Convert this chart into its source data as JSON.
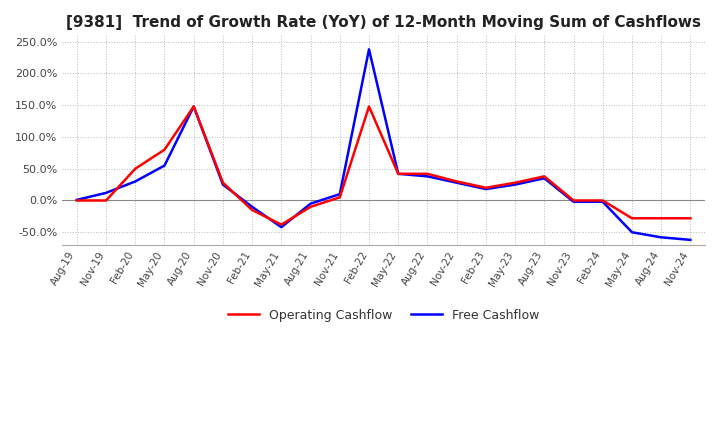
{
  "title": "[9381]  Trend of Growth Rate (YoY) of 12-Month Moving Sum of Cashflows",
  "title_fontsize": 11,
  "ylim": [
    -70,
    260
  ],
  "yticks": [
    -50,
    0,
    50,
    100,
    150,
    200,
    250
  ],
  "background_color": "#ffffff",
  "grid_color": "#bbbbbb",
  "operating_color": "#ff0000",
  "free_color": "#0000ff",
  "legend_labels": [
    "Operating Cashflow",
    "Free Cashflow"
  ],
  "x_labels": [
    "Aug-19",
    "Nov-19",
    "Feb-20",
    "May-20",
    "Aug-20",
    "Nov-20",
    "Feb-21",
    "May-21",
    "Aug-21",
    "Nov-21",
    "Feb-22",
    "May-22",
    "Aug-22",
    "Nov-22",
    "Feb-23",
    "May-23",
    "Aug-23",
    "Nov-23",
    "Feb-24",
    "May-24",
    "Aug-24",
    "Nov-24"
  ],
  "operating_cashflow": [
    0.0,
    0.0,
    50.0,
    80.0,
    148.0,
    28.0,
    -15.0,
    -38.0,
    -10.0,
    5.0,
    148.0,
    42.0,
    42.0,
    30.0,
    20.0,
    28.0,
    38.0,
    0.0,
    0.0,
    -28.0,
    -28.0,
    -28.0
  ],
  "free_cashflow": [
    1.0,
    12.0,
    30.0,
    55.0,
    148.0,
    25.0,
    -10.0,
    -42.0,
    -5.0,
    10.0,
    238.0,
    42.0,
    38.0,
    28.0,
    18.0,
    25.0,
    35.0,
    -2.0,
    -2.0,
    -50.0,
    -58.0,
    -62.0
  ]
}
